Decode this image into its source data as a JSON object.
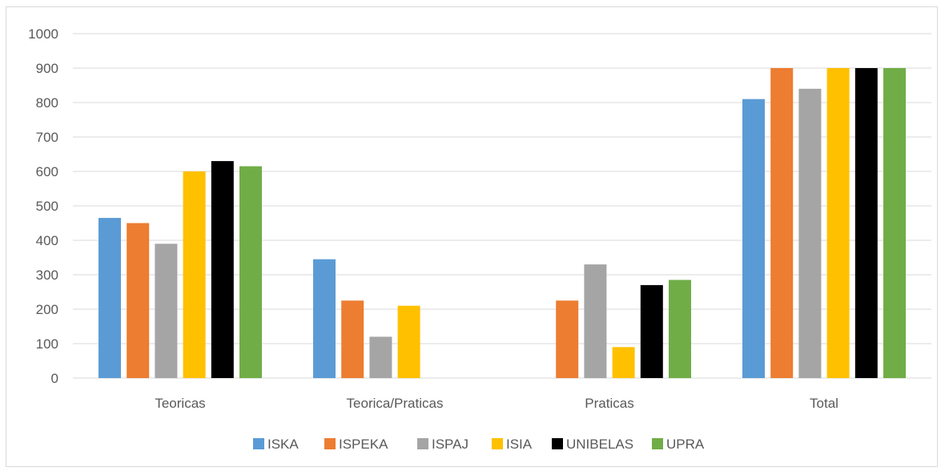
{
  "chart_data": {
    "type": "bar",
    "title": "",
    "xlabel": "",
    "ylabel": "",
    "ylim": [
      0,
      1000
    ],
    "yticks": [
      0,
      100,
      200,
      300,
      400,
      500,
      600,
      700,
      800,
      900,
      1000
    ],
    "grid": true,
    "legend": "bottom",
    "categories": [
      "Teoricas",
      "Teorica/Praticas",
      "Praticas",
      "Total"
    ],
    "series": [
      {
        "name": "ISKA",
        "color": "#5b9bd5",
        "values": [
          465,
          345,
          0,
          810
        ]
      },
      {
        "name": "ISPEKA",
        "color": "#ed7d31",
        "values": [
          450,
          225,
          225,
          900
        ]
      },
      {
        "name": "ISPAJ",
        "color": "#a5a5a5",
        "values": [
          390,
          120,
          330,
          840
        ]
      },
      {
        "name": "ISIA",
        "color": "#ffc000",
        "values": [
          600,
          210,
          90,
          900
        ]
      },
      {
        "name": "UNIBELAS",
        "color": "#000000",
        "values": [
          630,
          0,
          270,
          900
        ]
      },
      {
        "name": "UPRA",
        "color": "#70ad47",
        "values": [
          615,
          0,
          285,
          900
        ]
      }
    ]
  }
}
